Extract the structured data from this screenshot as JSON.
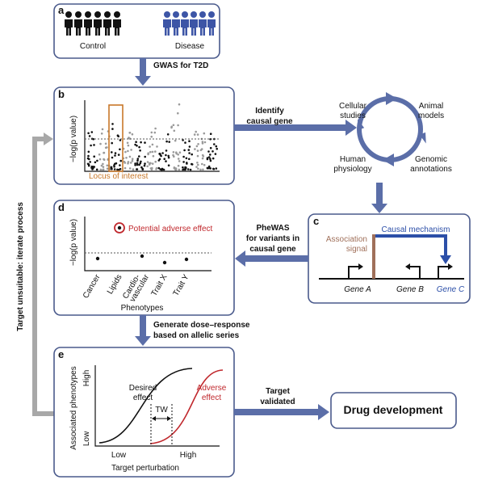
{
  "panel_a": {
    "label": "a",
    "groups": [
      "Control",
      "Disease"
    ]
  },
  "step_gwas": "GWAS for T2D",
  "panel_b": {
    "label": "b",
    "y_axis": "−log(p value)",
    "highlight": "Locus of interest"
  },
  "step_identify": [
    "Identify",
    "causal gene"
  ],
  "cycle": [
    [
      "Cellular",
      "studies"
    ],
    [
      "Animal",
      "models"
    ],
    [
      "Human",
      "physiology"
    ],
    [
      "Genomic",
      "annotations"
    ]
  ],
  "panel_c": {
    "label": "c",
    "signal": [
      "Association",
      "signal"
    ],
    "mechanism": "Causal mechanism",
    "genes": [
      "Gene A",
      "Gene B",
      "Gene C"
    ]
  },
  "step_phewas": [
    "PheWAS",
    "for variants in",
    "causal gene"
  ],
  "panel_d": {
    "label": "d",
    "legend": "Potential adverse effect",
    "y_axis": "−log(p value)",
    "phenotypes": [
      [
        "Cancer"
      ],
      [
        "Lipids"
      ],
      [
        "Cardio-",
        "vascular"
      ],
      [
        "Trait X"
      ],
      [
        "Trait Y"
      ]
    ],
    "x_axis": "Phenotypes"
  },
  "step_dose": [
    "Generate dose–response",
    "based on allelic series"
  ],
  "panel_e": {
    "label": "e",
    "y_axis": "Associated phenotypes",
    "y_high": "High",
    "y_low": "Low",
    "desired": [
      "Desired",
      "effect"
    ],
    "adverse": [
      "Adverse",
      "effect"
    ],
    "window": "TW",
    "x_low": "Low",
    "x_high": "High",
    "x_axis": "Target perturbation"
  },
  "step_validated": [
    "Target",
    "validated"
  ],
  "outcome": "Drug development",
  "loop": "Target unsuitable: iterate process"
}
